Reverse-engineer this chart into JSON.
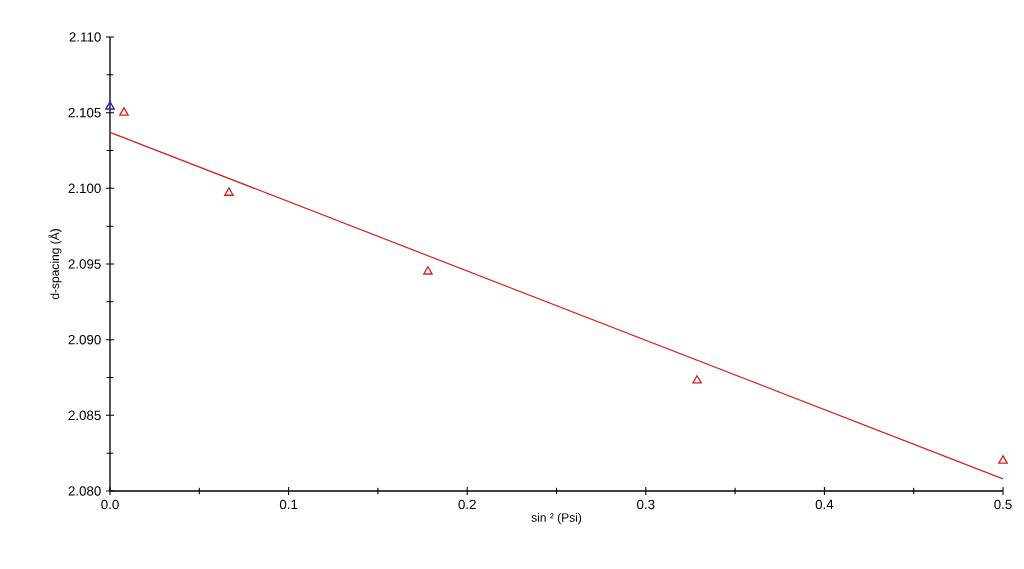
{
  "chart_data": {
    "type": "scatter",
    "xlabel": "sin ² (Psi)",
    "ylabel": "d-spacing (Å)",
    "series": [
      {
        "color": "#2020c0",
        "x": [
          0
        ],
        "values": [
          2.1054
        ]
      },
      {
        "color": "#d42020",
        "x": [
          0.0078,
          0.0666,
          0.178,
          0.3287,
          0.5
        ],
        "values": [
          2.105,
          2.0997,
          2.0945,
          2.0873,
          2.082
        ]
      },
      {
        "type": "line",
        "color": "#d42020",
        "x": [
          0,
          0.5
        ],
        "values": [
          2.1037,
          2.0808
        ],
        "marker": "none",
        "line_style": "solid"
      }
    ],
    "xlim": [
      0,
      0.5
    ],
    "ylim": [
      2.08,
      2.11
    ],
    "xticks": [
      {
        "value": 0,
        "label": "0.0"
      },
      0.1,
      0.2,
      0.3,
      0.4,
      0.5
    ],
    "yticks": [
      {
        "value": 2.08,
        "label": "2.080"
      },
      {
        "value": 2.085,
        "label": "2.085"
      },
      {
        "value": 2.09,
        "label": "2.090"
      },
      {
        "value": 2.095,
        "label": "2.095"
      },
      {
        "value": 2.1,
        "label": "2.100"
      },
      {
        "value": 2.105,
        "label": "2.105"
      },
      {
        "value": 2.11,
        "label": "2.110"
      }
    ],
    "marker": "triangle"
  }
}
